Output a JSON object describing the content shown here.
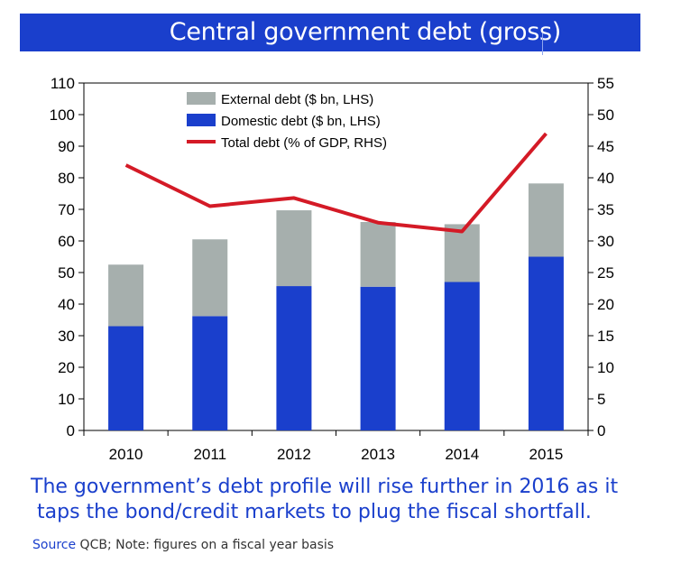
{
  "title": "Central government debt (gross)",
  "caption": {
    "line1": "The government’s debt profile will rise further in 2016 as it",
    "line2": "taps the bond/credit markets to plug the fiscal shortfall."
  },
  "source": {
    "label": "Source",
    "text": " QCB; Note: figures on a fiscal year basis"
  },
  "colors": {
    "brand_blue": "#1a3fcc",
    "external_bar": "#a6afad",
    "domestic_bar": "#1a3fcc",
    "total_line": "#d41a26"
  },
  "chart_data": {
    "type": "bar",
    "stacked": true,
    "categories": [
      "2010",
      "2011",
      "2012",
      "2013",
      "2014",
      "2015"
    ],
    "series": [
      {
        "name": "Domestic debt ($ bn, LHS)",
        "axis": "left",
        "kind": "bar",
        "values": [
          33,
          36.2,
          45.7,
          45.5,
          47,
          55
        ]
      },
      {
        "name": "External debt ($ bn, LHS)",
        "axis": "left",
        "kind": "bar",
        "values": [
          19.5,
          24.3,
          24,
          20.5,
          18.3,
          23.2
        ]
      },
      {
        "name": "Total debt (% of GDP, RHS)",
        "axis": "right",
        "kind": "line",
        "values": [
          42,
          35.5,
          36.8,
          32.9,
          31.5,
          47
        ]
      }
    ],
    "legend_order": [
      "External debt ($ bn, LHS)",
      "Domestic debt ($ bn, LHS)",
      "Total debt (% of GDP, RHS)"
    ],
    "ylim_left": [
      0,
      110
    ],
    "yticks_left": [
      "0",
      "10",
      "20",
      "30",
      "40",
      "50",
      "60",
      "70",
      "80",
      "90",
      "100",
      "110"
    ],
    "ylim_right": [
      0,
      55
    ],
    "yticks_right": [
      "0",
      "5",
      "10",
      "15",
      "20",
      "25",
      "30",
      "35",
      "40",
      "45",
      "50",
      "55"
    ],
    "xlabel": "",
    "ylabel": "",
    "legend": "top-center",
    "grid": false
  }
}
